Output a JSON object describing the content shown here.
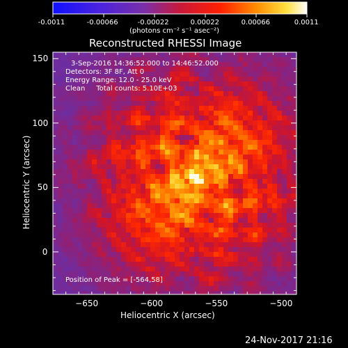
{
  "colorbar": {
    "tick_labels": [
      "-0.0011",
      "-0.00066",
      "-0.00022",
      "0.00022",
      "0.00066",
      "0.0011"
    ],
    "units": "(photons cm⁻² s⁻¹ asec⁻²)",
    "min": -0.0011,
    "max": 0.0011
  },
  "chart_data": {
    "type": "heatmap",
    "title": "Reconstructed RHESSI Image",
    "xlabel": "Heliocentric X (arcsec)",
    "ylabel": "Heliocentric Y (arcsec)",
    "xlim": [
      -675,
      -487
    ],
    "ylim": [
      -33,
      155
    ],
    "x_ticks": [
      -650,
      -600,
      -550,
      -500
    ],
    "y_ticks": [
      0,
      50,
      100,
      150
    ],
    "annotations": [
      "3-Sep-2016 14:36:52.000 to 14:46:52.000",
      "Detectors: 3F 8F, Att 0",
      "Energy Range: 12.0 - 25.0 keV",
      "Clean     Total counts: 5.10E+03"
    ],
    "peak_label": "Position of Peak = [-564,58]",
    "peak_position": [
      -564,
      58
    ],
    "grid": false
  },
  "footer": {
    "date": "24-Nov-2017 21:16"
  }
}
